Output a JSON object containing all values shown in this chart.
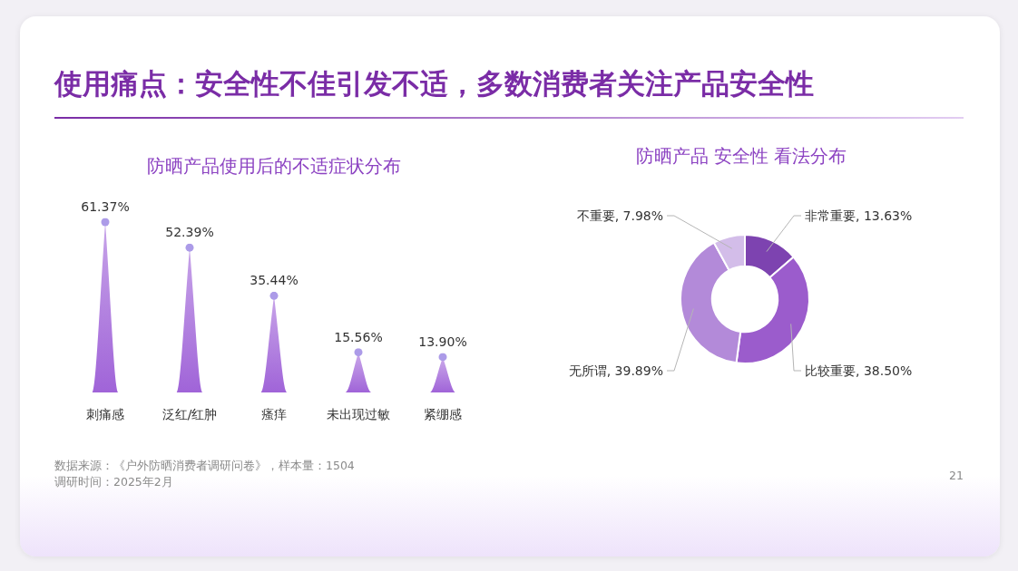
{
  "chart_data": [
    {
      "type": "bar",
      "title": "使用痛点：安全性不佳引发不适，多数消费者关注产品安全性",
      "subtitle": "防晒产品使用后的不适症状分布",
      "categories": [
        "刺痛感",
        "泛红/红肿",
        "瘙痒",
        "未出现过敏",
        "紧绷感"
      ],
      "values": [
        61.37,
        52.39,
        35.44,
        15.56,
        13.9
      ],
      "value_labels": [
        "61.37%",
        "52.39%",
        "35.44%",
        "15.56%",
        "13.90%"
      ],
      "color": "#a064d8",
      "annotations": [
        "数据来源：《户外防晒消费者调研问卷》，样本量：1504",
        "调研时间：2025年2月"
      ]
    },
    {
      "type": "donut",
      "title": "防晒产品 安全性 看法分布",
      "categories": [
        "非常重要",
        "比较重要",
        "无所谓",
        "不重要"
      ],
      "values": [
        13.63,
        38.5,
        39.89,
        7.98
      ],
      "value_labels": [
        "13.63%",
        "38.50%",
        "39.89%",
        "7.98%"
      ],
      "colors": [
        "#7d43b0",
        "#9b5ccc",
        "#b38ad9",
        "#d3bde9"
      ],
      "annotations": [
        "21"
      ]
    }
  ]
}
